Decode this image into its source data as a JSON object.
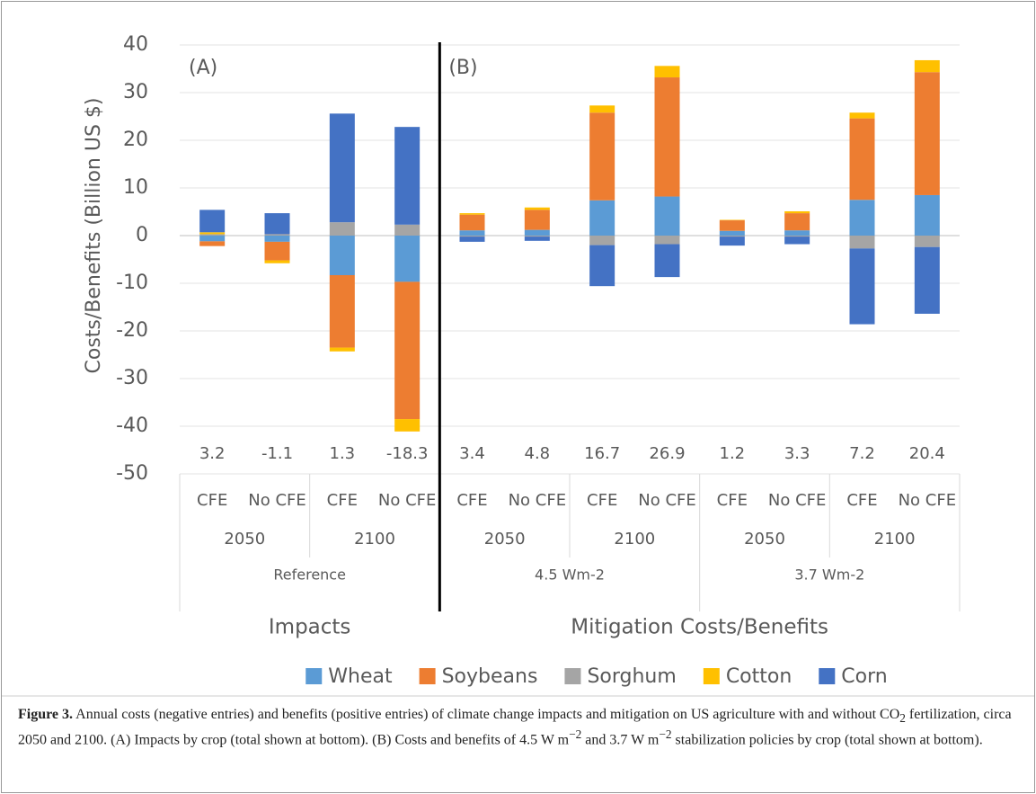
{
  "chart_data": {
    "type": "stacked-bar",
    "y_axis_title": "Costs/Benefits (Billion US $)",
    "ylim": [
      -50,
      40
    ],
    "yticks": [
      40,
      30,
      20,
      10,
      0,
      -10,
      -20,
      -30,
      -40,
      -50
    ],
    "grid": true,
    "legend": "bottom",
    "panels": [
      {
        "label": "(A)",
        "title": "Impacts",
        "groups": [
          {
            "name": "Reference",
            "subgroups": [
              {
                "name": "2050",
                "categories": [
                  "CFE",
                  "No CFE"
                ]
              },
              {
                "name": "2100",
                "categories": [
                  "CFE",
                  "No CFE"
                ]
              }
            ]
          }
        ]
      },
      {
        "label": "(B)",
        "title": "Mitigation Costs/Benefits",
        "groups": [
          {
            "name": "4.5 Wm-2",
            "subgroups": [
              {
                "name": "2050",
                "categories": [
                  "CFE",
                  "No CFE"
                ]
              },
              {
                "name": "2100",
                "categories": [
                  "CFE",
                  "No CFE"
                ]
              }
            ]
          },
          {
            "name": "3.7 Wm-2",
            "subgroups": [
              {
                "name": "2050",
                "categories": [
                  "CFE",
                  "No CFE"
                ]
              },
              {
                "name": "2100",
                "categories": [
                  "CFE",
                  "No CFE"
                ]
              }
            ]
          }
        ]
      }
    ],
    "series": [
      {
        "name": "Wheat",
        "color": "#5b9bd5",
        "values": [
          -1.2,
          -1.3,
          -8.3,
          -9.7,
          1.1,
          1.2,
          7.4,
          8.2,
          1.0,
          1.1,
          7.5,
          8.5
        ]
      },
      {
        "name": "Soybeans",
        "color": "#ed7d31",
        "values": [
          -1.0,
          -3.9,
          -15.2,
          -28.8,
          3.3,
          4.2,
          18.4,
          25.0,
          2.2,
          3.6,
          17.1,
          25.8
        ]
      },
      {
        "name": "Sorghum",
        "color": "#a5a5a5",
        "values": [
          0.3,
          0.3,
          2.8,
          2.3,
          -0.2,
          -0.2,
          -2.0,
          -1.8,
          -0.2,
          -0.2,
          -2.7,
          -2.4
        ]
      },
      {
        "name": "Cotton",
        "color": "#ffc000",
        "values": [
          0.4,
          -0.6,
          -0.8,
          -2.6,
          0.3,
          0.5,
          1.5,
          2.4,
          0.1,
          0.4,
          1.2,
          2.5
        ]
      },
      {
        "name": "Corn",
        "color": "#4472c4",
        "values": [
          4.7,
          4.4,
          22.8,
          20.5,
          -1.1,
          -0.9,
          -8.6,
          -6.9,
          -1.9,
          -1.6,
          -15.9,
          -14.0
        ]
      }
    ],
    "totals": [
      3.2,
      -1.1,
      1.3,
      -18.3,
      3.4,
      4.8,
      16.7,
      26.9,
      1.2,
      3.3,
      7.2,
      20.4
    ]
  },
  "caption": {
    "label": "Figure 3.",
    "segments": [
      {
        "text": " Annual costs (negative entries) and benefits (positive entries) of climate change impacts and mitigation on US agriculture with and without CO"
      },
      {
        "sub": "2"
      },
      {
        "text": " fertilization, circa 2050 and 2100. (A) Impacts by crop (total shown at bottom). (B) Costs and benefits of 4.5 W m"
      },
      {
        "sup": "−2"
      },
      {
        "text": " and 3.7 W m"
      },
      {
        "sup": "−2"
      },
      {
        "text": " stabilization policies by crop (total shown at bottom)."
      }
    ]
  }
}
